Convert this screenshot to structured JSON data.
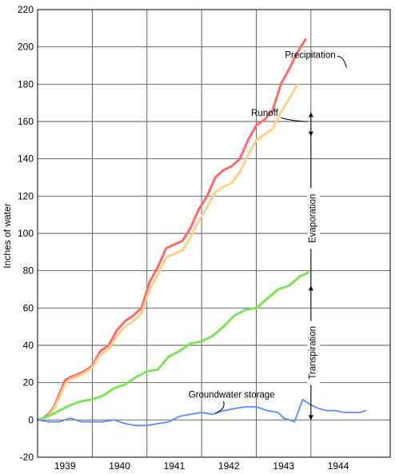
{
  "chart_data": {
    "type": "line",
    "title": "",
    "xlabel": "",
    "ylabel": "Inches of water",
    "ylim": [
      -20,
      220
    ],
    "xlim": [
      1938.5,
      1944.95
    ],
    "yticks": [
      -20,
      0,
      20,
      40,
      60,
      80,
      100,
      120,
      140,
      160,
      180,
      200,
      220
    ],
    "xtick_labels": [
      {
        "label": "1939",
        "x": 1939.0
      },
      {
        "label": "1940",
        "x": 1940.0
      },
      {
        "label": "1941",
        "x": 1941.0
      },
      {
        "label": "1942",
        "x": 1942.0
      },
      {
        "label": "1943",
        "x": 1943.0
      },
      {
        "label": "1944",
        "x": 1944.0
      }
    ],
    "grid": true,
    "legend": "none",
    "series": [
      {
        "name": "Precipitation",
        "color": "#ff6b6b",
        "x": [
          1938.5,
          1938.6,
          1938.7,
          1938.8,
          1938.9,
          1939.0,
          1939.1,
          1939.2,
          1939.35,
          1939.5,
          1939.65,
          1939.8,
          1939.95,
          1940.1,
          1940.25,
          1940.4,
          1940.55,
          1940.7,
          1940.85,
          1941.0,
          1941.15,
          1941.3,
          1941.45,
          1941.6,
          1941.75,
          1941.9,
          1942.05,
          1942.2,
          1942.35,
          1942.5,
          1942.65,
          1942.8,
          1942.95,
          1943.1,
          1943.25,
          1943.4,
          1943.55,
          1943.7,
          1943.85,
          1944.0,
          1944.15,
          1944.3,
          1944.45
        ],
        "values": [
          0,
          1,
          3,
          7,
          14,
          21,
          23,
          24,
          26,
          29,
          37,
          40,
          48,
          53,
          56,
          60,
          74,
          82,
          92,
          94,
          96,
          103,
          113,
          120,
          130,
          134,
          136,
          140,
          150,
          158,
          161,
          166,
          180,
          188,
          197,
          204,
          null,
          null,
          null,
          null,
          null,
          null,
          null
        ]
      },
      {
        "name": "Runoff",
        "color": "#ffd28c",
        "x": [
          1938.5,
          1938.6,
          1938.7,
          1938.8,
          1938.9,
          1939.0,
          1939.1,
          1939.2,
          1939.35,
          1939.5,
          1939.65,
          1939.8,
          1939.95,
          1940.1,
          1940.25,
          1940.4,
          1940.55,
          1940.7,
          1940.85,
          1941.0,
          1941.15,
          1941.3,
          1941.45,
          1941.6,
          1941.75,
          1941.9,
          1942.05,
          1942.2,
          1942.35,
          1942.5,
          1942.65,
          1942.8,
          1942.95,
          1943.1,
          1943.25,
          1943.4
        ],
        "values": [
          0,
          1,
          2,
          6,
          12,
          19,
          22,
          23,
          25,
          28,
          35,
          38,
          45,
          50,
          53,
          57,
          70,
          78,
          87,
          89,
          91,
          98,
          107,
          114,
          122,
          125,
          127,
          133,
          142,
          150,
          153,
          156,
          165,
          172,
          180,
          null
        ]
      },
      {
        "name": "Evaporation + Transpiration",
        "color": "#7fe35a",
        "x": [
          1938.5,
          1938.7,
          1938.9,
          1939.1,
          1939.3,
          1939.5,
          1939.7,
          1939.9,
          1940.1,
          1940.3,
          1940.5,
          1940.7,
          1940.9,
          1941.1,
          1941.3,
          1941.5,
          1941.7,
          1941.9,
          1942.1,
          1942.3,
          1942.5,
          1942.7,
          1942.9,
          1943.1,
          1943.3,
          1943.45
        ],
        "values": [
          0,
          2,
          5,
          8,
          10,
          11,
          13,
          17,
          19,
          23,
          26,
          27,
          34,
          37,
          41,
          42,
          45,
          50,
          56,
          59,
          60,
          65,
          70,
          72,
          77,
          79
        ]
      },
      {
        "name": "Groundwater storage",
        "color": "#5b8cff",
        "x": [
          1938.5,
          1938.7,
          1938.9,
          1939.1,
          1939.3,
          1939.5,
          1939.7,
          1939.9,
          1940.1,
          1940.3,
          1940.5,
          1940.7,
          1940.9,
          1941.1,
          1941.3,
          1941.5,
          1941.7,
          1941.9,
          1942.1,
          1942.3,
          1942.5,
          1942.7,
          1942.9,
          1943.0,
          1943.1,
          1943.2,
          1943.35,
          1943.5,
          1943.65,
          1943.8,
          1943.95,
          1944.1,
          1944.25,
          1944.4,
          1944.5
        ],
        "values": [
          0,
          -1,
          -1,
          1,
          -1,
          -1,
          -1,
          0,
          -2,
          -3,
          -3,
          -2,
          -1,
          2,
          3,
          4,
          3,
          5,
          6,
          7,
          7,
          5,
          4,
          1,
          0,
          -1,
          11,
          8,
          6,
          5,
          5,
          4,
          4,
          4,
          5
        ]
      }
    ],
    "annotations": [
      {
        "text": "Precipitation",
        "x": 1943.95,
        "y": 194
      },
      {
        "text": "Runoff",
        "x": 1942.9,
        "y": 163
      },
      {
        "text": "Evaporation",
        "x": 1943.55,
        "y": 108
      },
      {
        "text": "Transpiration",
        "x": 1943.55,
        "y": 36
      },
      {
        "text": "Groundwater storage",
        "x": 1942.05,
        "y": 12
      }
    ]
  }
}
